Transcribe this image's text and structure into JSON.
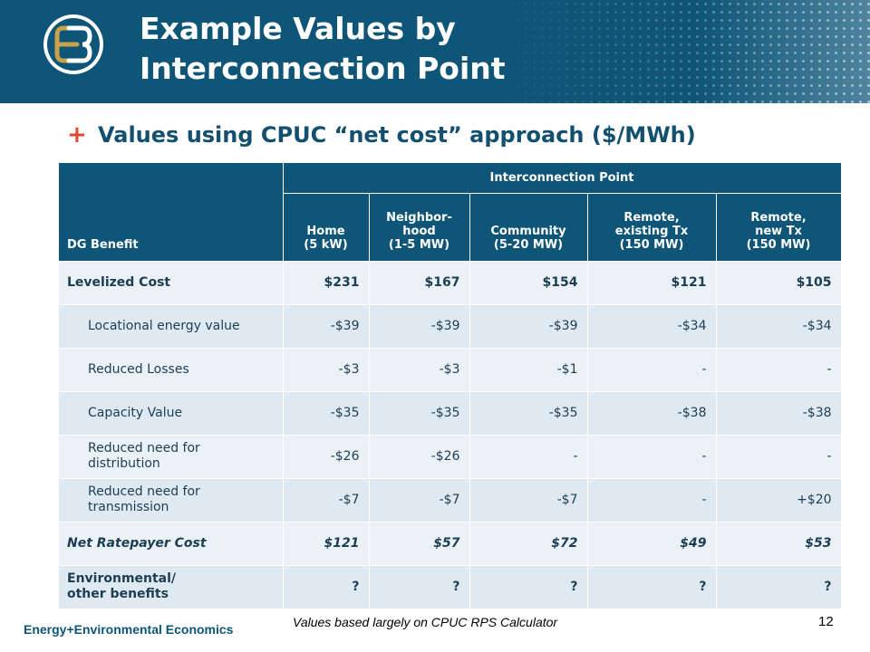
{
  "slide": {
    "title_line1": "Example Values by",
    "title_line2": "Interconnection Point",
    "bullet": "Values using CPUC “net cost” approach ($/MWh)"
  },
  "table": {
    "corner_header": "DG Benefit",
    "group_header": "Interconnection Point",
    "columns": [
      {
        "line1": "Home",
        "line2": "(5 kW)"
      },
      {
        "line1": "Neighbor-",
        "line2": "hood",
        "line3": "(1-5 MW)"
      },
      {
        "line1": "Community",
        "line2": "(5-20 MW)"
      },
      {
        "line1": "Remote,",
        "line2": "existing Tx",
        "line3": "(150 MW)"
      },
      {
        "line1": "Remote,",
        "line2": "new Tx",
        "line3": "(150 MW)"
      }
    ],
    "rows": [
      {
        "label": "Levelized Cost",
        "values": [
          "$231",
          "$167",
          "$154",
          "$121",
          "$105"
        ]
      },
      {
        "label": "Locational energy value",
        "values": [
          "-$39",
          "-$39",
          "-$39",
          "-$34",
          "-$34"
        ]
      },
      {
        "label": "Reduced Losses",
        "values": [
          "-$3",
          "-$3",
          "-$1",
          "-",
          "-"
        ]
      },
      {
        "label": "Capacity Value",
        "values": [
          "-$35",
          "-$35",
          "-$35",
          "-$38",
          "-$38"
        ]
      },
      {
        "label_line1": "Reduced need for",
        "label_line2": "distribution",
        "values": [
          "-$26",
          "-$26",
          "-",
          "-",
          "-"
        ]
      },
      {
        "label_line1": "Reduced need for",
        "label_line2": "transmission",
        "values": [
          "-$7",
          "-$7",
          "-$7",
          "-",
          "+$20"
        ]
      },
      {
        "label": "Net Ratepayer Cost",
        "values": [
          "$121",
          "$57",
          "$72",
          "$49",
          "$53"
        ]
      },
      {
        "label_line1": "Environmental/",
        "label_line2": "other benefits",
        "values": [
          "?",
          "?",
          "?",
          "?",
          "?"
        ]
      }
    ]
  },
  "footer": {
    "brand": "Energy+Environmental Economics",
    "note": "Values based largely on CPUC RPS Calculator",
    "page_number": "12"
  },
  "colors": {
    "header_bg": "#0e5578",
    "logo_gold": "#c9a14a",
    "accent_plus": "#e5452f",
    "row_light": "#eaf1f7",
    "row_dark": "#dfe9f2"
  },
  "icons": {
    "logo": "e3-logo-icon",
    "bullet": "plus-icon"
  }
}
